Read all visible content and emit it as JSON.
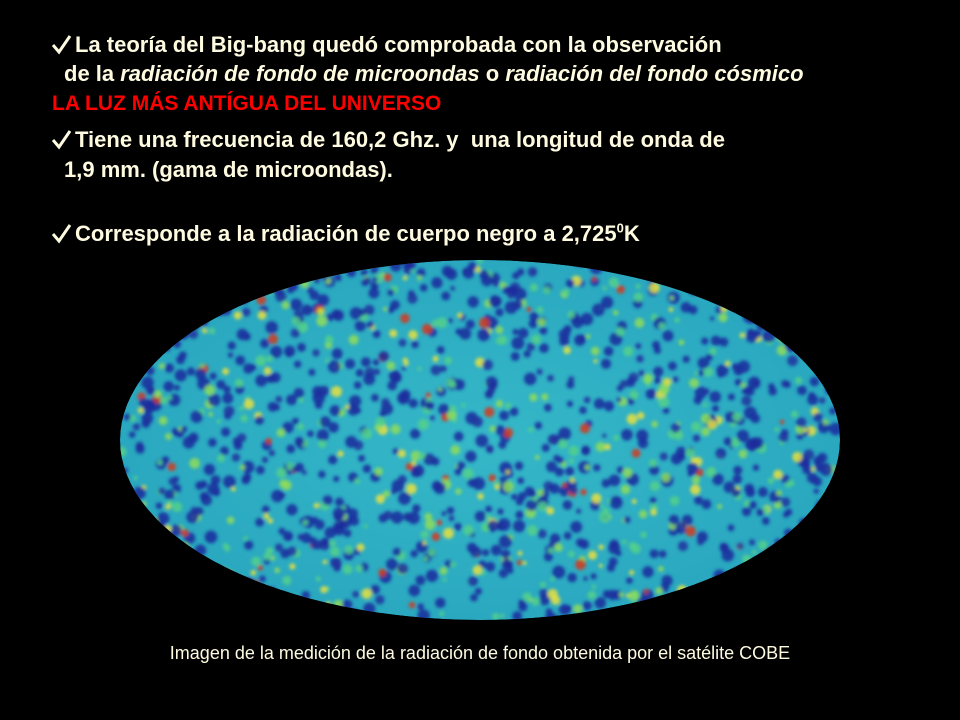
{
  "slide": {
    "line1": "La teoría del Big-bang quedó comprobada con la observación",
    "line2": {
      "a": "de la ",
      "b": "radiación de fondo de microondas",
      "c": " o ",
      "d": "radiación del fondo cósmico"
    },
    "highlight": "LA LUZ MÁS ANTÍGUA DEL UNIVERSO",
    "line3": "Tiene una frecuencia de 160,2 Ghz. y  una longitud de onda de",
    "line4": "1,9 mm. (gama de microondas).",
    "line5": {
      "text": "Corresponde a la radiación de cuerpo negro a 2,725",
      "sup": "0",
      "unit": "K"
    },
    "caption": "Imagen de la medición de la radiación de fondo obtenida por el satélite COBE"
  }
}
